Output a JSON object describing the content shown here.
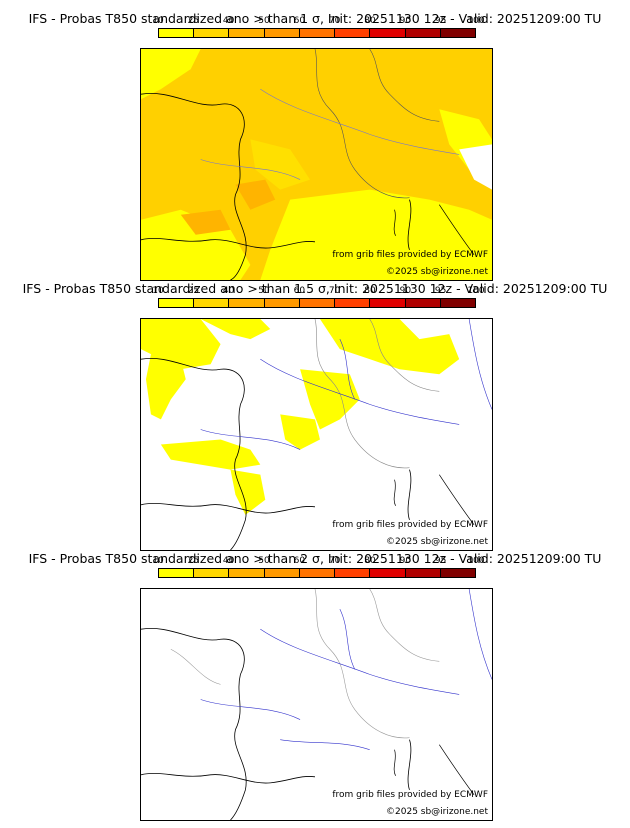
{
  "colorbar": {
    "ticks": [
      "10",
      "25",
      "40",
      "50",
      "60",
      "70",
      "80",
      "90",
      "95",
      "100"
    ],
    "colors": [
      "#ffff00",
      "#ffd700",
      "#ffb000",
      "#ff9900",
      "#ff7300",
      "#ff4000",
      "#e00000",
      "#b00000",
      "#800000"
    ]
  },
  "panels": [
    {
      "title": "IFS - Probas T850  standardized ano > than 1 σ, Init: 20251130 12z - Valid: 20251209:00 TU",
      "credit_source": "from grib files provided by ECMWF",
      "credit_copyright": "©2025 sb@irizone.net",
      "fill_level": "high"
    },
    {
      "title": "IFS - Probas T850  standardized ano > than 1.5 σ, Init: 20251130 12z - Valid: 20251209:00 TU",
      "credit_source": "from grib files provided by ECMWF",
      "credit_copyright": "©2025 sb@irizone.net",
      "fill_level": "partial"
    },
    {
      "title": "IFS - Probas T850  standardized ano > than 2 σ, Init: 20251130 12z - Valid: 20251209:00 TU",
      "credit_source": "from grib files provided by ECMWF",
      "credit_copyright": "©2025 sb@irizone.net",
      "fill_level": "none"
    }
  ]
}
